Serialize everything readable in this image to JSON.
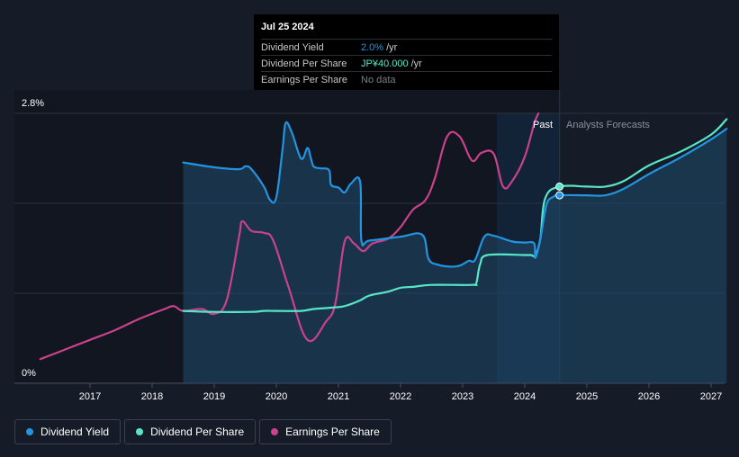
{
  "tooltip": {
    "date": "Jul 25 2024",
    "rows": [
      {
        "label": "Dividend Yield",
        "value": "2.0%",
        "unit": "/yr"
      },
      {
        "label": "Dividend Per Share",
        "value": "JP¥40.000",
        "unit": "/yr"
      },
      {
        "label": "Earnings Per Share",
        "value": "No data",
        "unit": ""
      }
    ]
  },
  "chart_data": {
    "type": "line",
    "y_axis_labels": {
      "top": "2.8%",
      "bottom": "0%"
    },
    "ylim": [
      0,
      2.8
    ],
    "xlim": [
      2016.0,
      2027.25
    ],
    "x_ticks": [
      "2017",
      "2018",
      "2019",
      "2020",
      "2021",
      "2022",
      "2023",
      "2024",
      "2025",
      "2026",
      "2027"
    ],
    "regions": {
      "past_label": "Past",
      "forecast_label": "Analysts Forecasts",
      "past_start": 2023.55,
      "split": 2024.56
    },
    "colors": {
      "yield": "#2394df",
      "dps": "#58e6c8",
      "eps": "#c9428b",
      "background": "#151b27"
    },
    "series": [
      {
        "name": "Dividend Yield",
        "x": [
          2018.5,
          2019.0,
          2019.4,
          2019.5,
          2019.6,
          2019.8,
          2019.9,
          2020.0,
          2020.1,
          2020.15,
          2020.25,
          2020.4,
          2020.5,
          2020.55,
          2020.6,
          2020.7,
          2020.85,
          2020.88,
          2021.0,
          2021.1,
          2021.2,
          2021.35,
          2021.37,
          2021.5,
          2022.0,
          2022.35,
          2022.45,
          2022.6,
          2022.8,
          2022.95,
          2023.1,
          2023.2,
          2023.35,
          2023.5,
          2023.8,
          2024.0,
          2024.15,
          2024.17,
          2024.25,
          2024.35,
          2024.45,
          2024.56,
          2025.0,
          2025.3,
          2025.6,
          2026.0,
          2026.5,
          2027.0,
          2027.25
        ],
        "y": [
          2.29,
          2.24,
          2.22,
          2.25,
          2.22,
          2.04,
          1.9,
          1.93,
          2.43,
          2.7,
          2.6,
          2.33,
          2.44,
          2.35,
          2.25,
          2.23,
          2.21,
          2.06,
          2.03,
          1.98,
          2.07,
          2.09,
          1.48,
          1.48,
          1.52,
          1.54,
          1.29,
          1.23,
          1.21,
          1.22,
          1.27,
          1.28,
          1.52,
          1.53,
          1.47,
          1.46,
          1.45,
          1.3,
          1.5,
          1.85,
          1.93,
          1.95,
          1.95,
          1.95,
          2.02,
          2.17,
          2.34,
          2.53,
          2.64
        ]
      },
      {
        "name": "Dividend Per Share",
        "x": [
          2018.5,
          2019.0,
          2019.6,
          2019.8,
          2020.0,
          2020.4,
          2020.6,
          2021.0,
          2021.15,
          2021.35,
          2021.5,
          2021.8,
          2022.0,
          2022.2,
          2022.5,
          2023.15,
          2023.22,
          2023.28,
          2023.4,
          2024.0,
          2024.1,
          2024.17,
          2024.25,
          2024.33,
          2024.56,
          2025.0,
          2025.3,
          2025.6,
          2026.0,
          2026.5,
          2027.0,
          2027.25
        ],
        "y": [
          0.75,
          0.74,
          0.74,
          0.75,
          0.75,
          0.75,
          0.77,
          0.79,
          0.81,
          0.86,
          0.91,
          0.95,
          0.99,
          1.0,
          1.02,
          1.02,
          1.04,
          1.23,
          1.33,
          1.33,
          1.33,
          1.33,
          1.5,
          1.92,
          2.04,
          2.04,
          2.04,
          2.1,
          2.26,
          2.4,
          2.58,
          2.74
        ]
      },
      {
        "name": "Earnings Per Share",
        "x": [
          2016.2,
          2016.6,
          2017.0,
          2017.4,
          2017.8,
          2018.2,
          2018.35,
          2018.5,
          2018.8,
          2019.0,
          2019.2,
          2019.4,
          2019.45,
          2019.6,
          2019.8,
          2019.95,
          2020.2,
          2020.5,
          2020.8,
          2020.95,
          2021.1,
          2021.25,
          2021.4,
          2021.55,
          2021.8,
          2022.0,
          2022.2,
          2022.4,
          2022.55,
          2022.75,
          2022.95,
          2023.15,
          2023.3,
          2023.5,
          2023.65,
          2023.8,
          2024.0,
          2024.15,
          2024.22
        ],
        "y": [
          0.25,
          0.35,
          0.45,
          0.55,
          0.67,
          0.77,
          0.8,
          0.75,
          0.77,
          0.72,
          0.86,
          1.52,
          1.68,
          1.58,
          1.56,
          1.48,
          0.99,
          0.45,
          0.64,
          0.83,
          1.47,
          1.45,
          1.37,
          1.45,
          1.5,
          1.62,
          1.8,
          1.9,
          2.12,
          2.56,
          2.56,
          2.31,
          2.39,
          2.38,
          2.04,
          2.1,
          2.35,
          2.69,
          2.8
        ]
      }
    ],
    "current_points": [
      {
        "series": "Dividend Per Share",
        "x": 2024.56,
        "y": 2.04
      },
      {
        "series": "Dividend Yield",
        "x": 2024.56,
        "y": 1.95
      }
    ],
    "legend_placement": "bottom-left"
  },
  "legend": [
    {
      "label": "Dividend Yield",
      "color": "#2394df"
    },
    {
      "label": "Dividend Per Share",
      "color": "#58e6c8"
    },
    {
      "label": "Earnings Per Share",
      "color": "#c9428b"
    }
  ]
}
